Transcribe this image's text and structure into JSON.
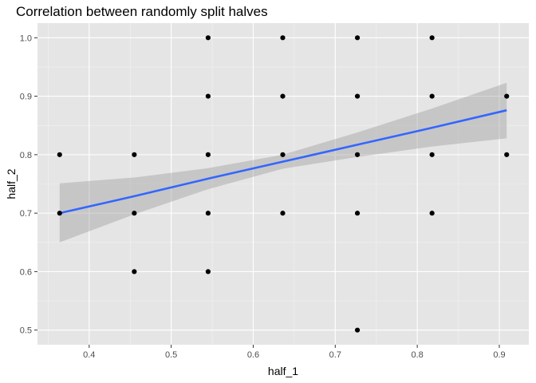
{
  "chart_data": {
    "type": "scatter",
    "title": "Correlation between randomly split halves",
    "xlabel": "half_1",
    "ylabel": "half_2",
    "xlim": [
      0.337,
      0.936
    ],
    "ylim": [
      0.475,
      1.025
    ],
    "x_ticks": [
      0.4,
      0.5,
      0.6,
      0.7,
      0.8,
      0.9
    ],
    "x_tick_labels": [
      "0.4",
      "0.5",
      "0.6",
      "0.7",
      "0.8",
      "0.9"
    ],
    "y_ticks": [
      0.5,
      0.6,
      0.7,
      0.8,
      0.9,
      1.0
    ],
    "y_tick_labels": [
      "0.5",
      "0.6",
      "0.7",
      "0.8",
      "0.9",
      "1.0"
    ],
    "grid": true,
    "legend": "none",
    "points": [
      {
        "x": 0.364,
        "y": 0.7
      },
      {
        "x": 0.364,
        "y": 0.8
      },
      {
        "x": 0.455,
        "y": 0.6
      },
      {
        "x": 0.455,
        "y": 0.7
      },
      {
        "x": 0.455,
        "y": 0.8
      },
      {
        "x": 0.545,
        "y": 0.6
      },
      {
        "x": 0.545,
        "y": 0.7
      },
      {
        "x": 0.545,
        "y": 0.8
      },
      {
        "x": 0.545,
        "y": 0.9
      },
      {
        "x": 0.545,
        "y": 1.0
      },
      {
        "x": 0.636,
        "y": 0.7
      },
      {
        "x": 0.636,
        "y": 0.8
      },
      {
        "x": 0.636,
        "y": 0.9
      },
      {
        "x": 0.636,
        "y": 1.0
      },
      {
        "x": 0.727,
        "y": 0.5
      },
      {
        "x": 0.727,
        "y": 0.7
      },
      {
        "x": 0.727,
        "y": 0.8
      },
      {
        "x": 0.727,
        "y": 0.9
      },
      {
        "x": 0.727,
        "y": 1.0
      },
      {
        "x": 0.818,
        "y": 0.7
      },
      {
        "x": 0.818,
        "y": 0.8
      },
      {
        "x": 0.818,
        "y": 0.9
      },
      {
        "x": 0.818,
        "y": 1.0
      },
      {
        "x": 0.909,
        "y": 0.8
      },
      {
        "x": 0.909,
        "y": 0.9
      }
    ],
    "smooth": {
      "method": "lm",
      "x": [
        0.364,
        0.455,
        0.545,
        0.636,
        0.727,
        0.818,
        0.909
      ],
      "fit": [
        0.7,
        0.729,
        0.759,
        0.788,
        0.817,
        0.846,
        0.876
      ],
      "lower": [
        0.65,
        0.698,
        0.741,
        0.776,
        0.796,
        0.814,
        0.828
      ],
      "upper": [
        0.751,
        0.761,
        0.777,
        0.8,
        0.838,
        0.879,
        0.923
      ]
    },
    "colors": {
      "panel": "#e5e5e5",
      "grid_major": "#ffffff",
      "grid_minor": "#f2f2f2",
      "point": "#000000",
      "line": "#3366ff",
      "ribbon": "#999999"
    }
  }
}
